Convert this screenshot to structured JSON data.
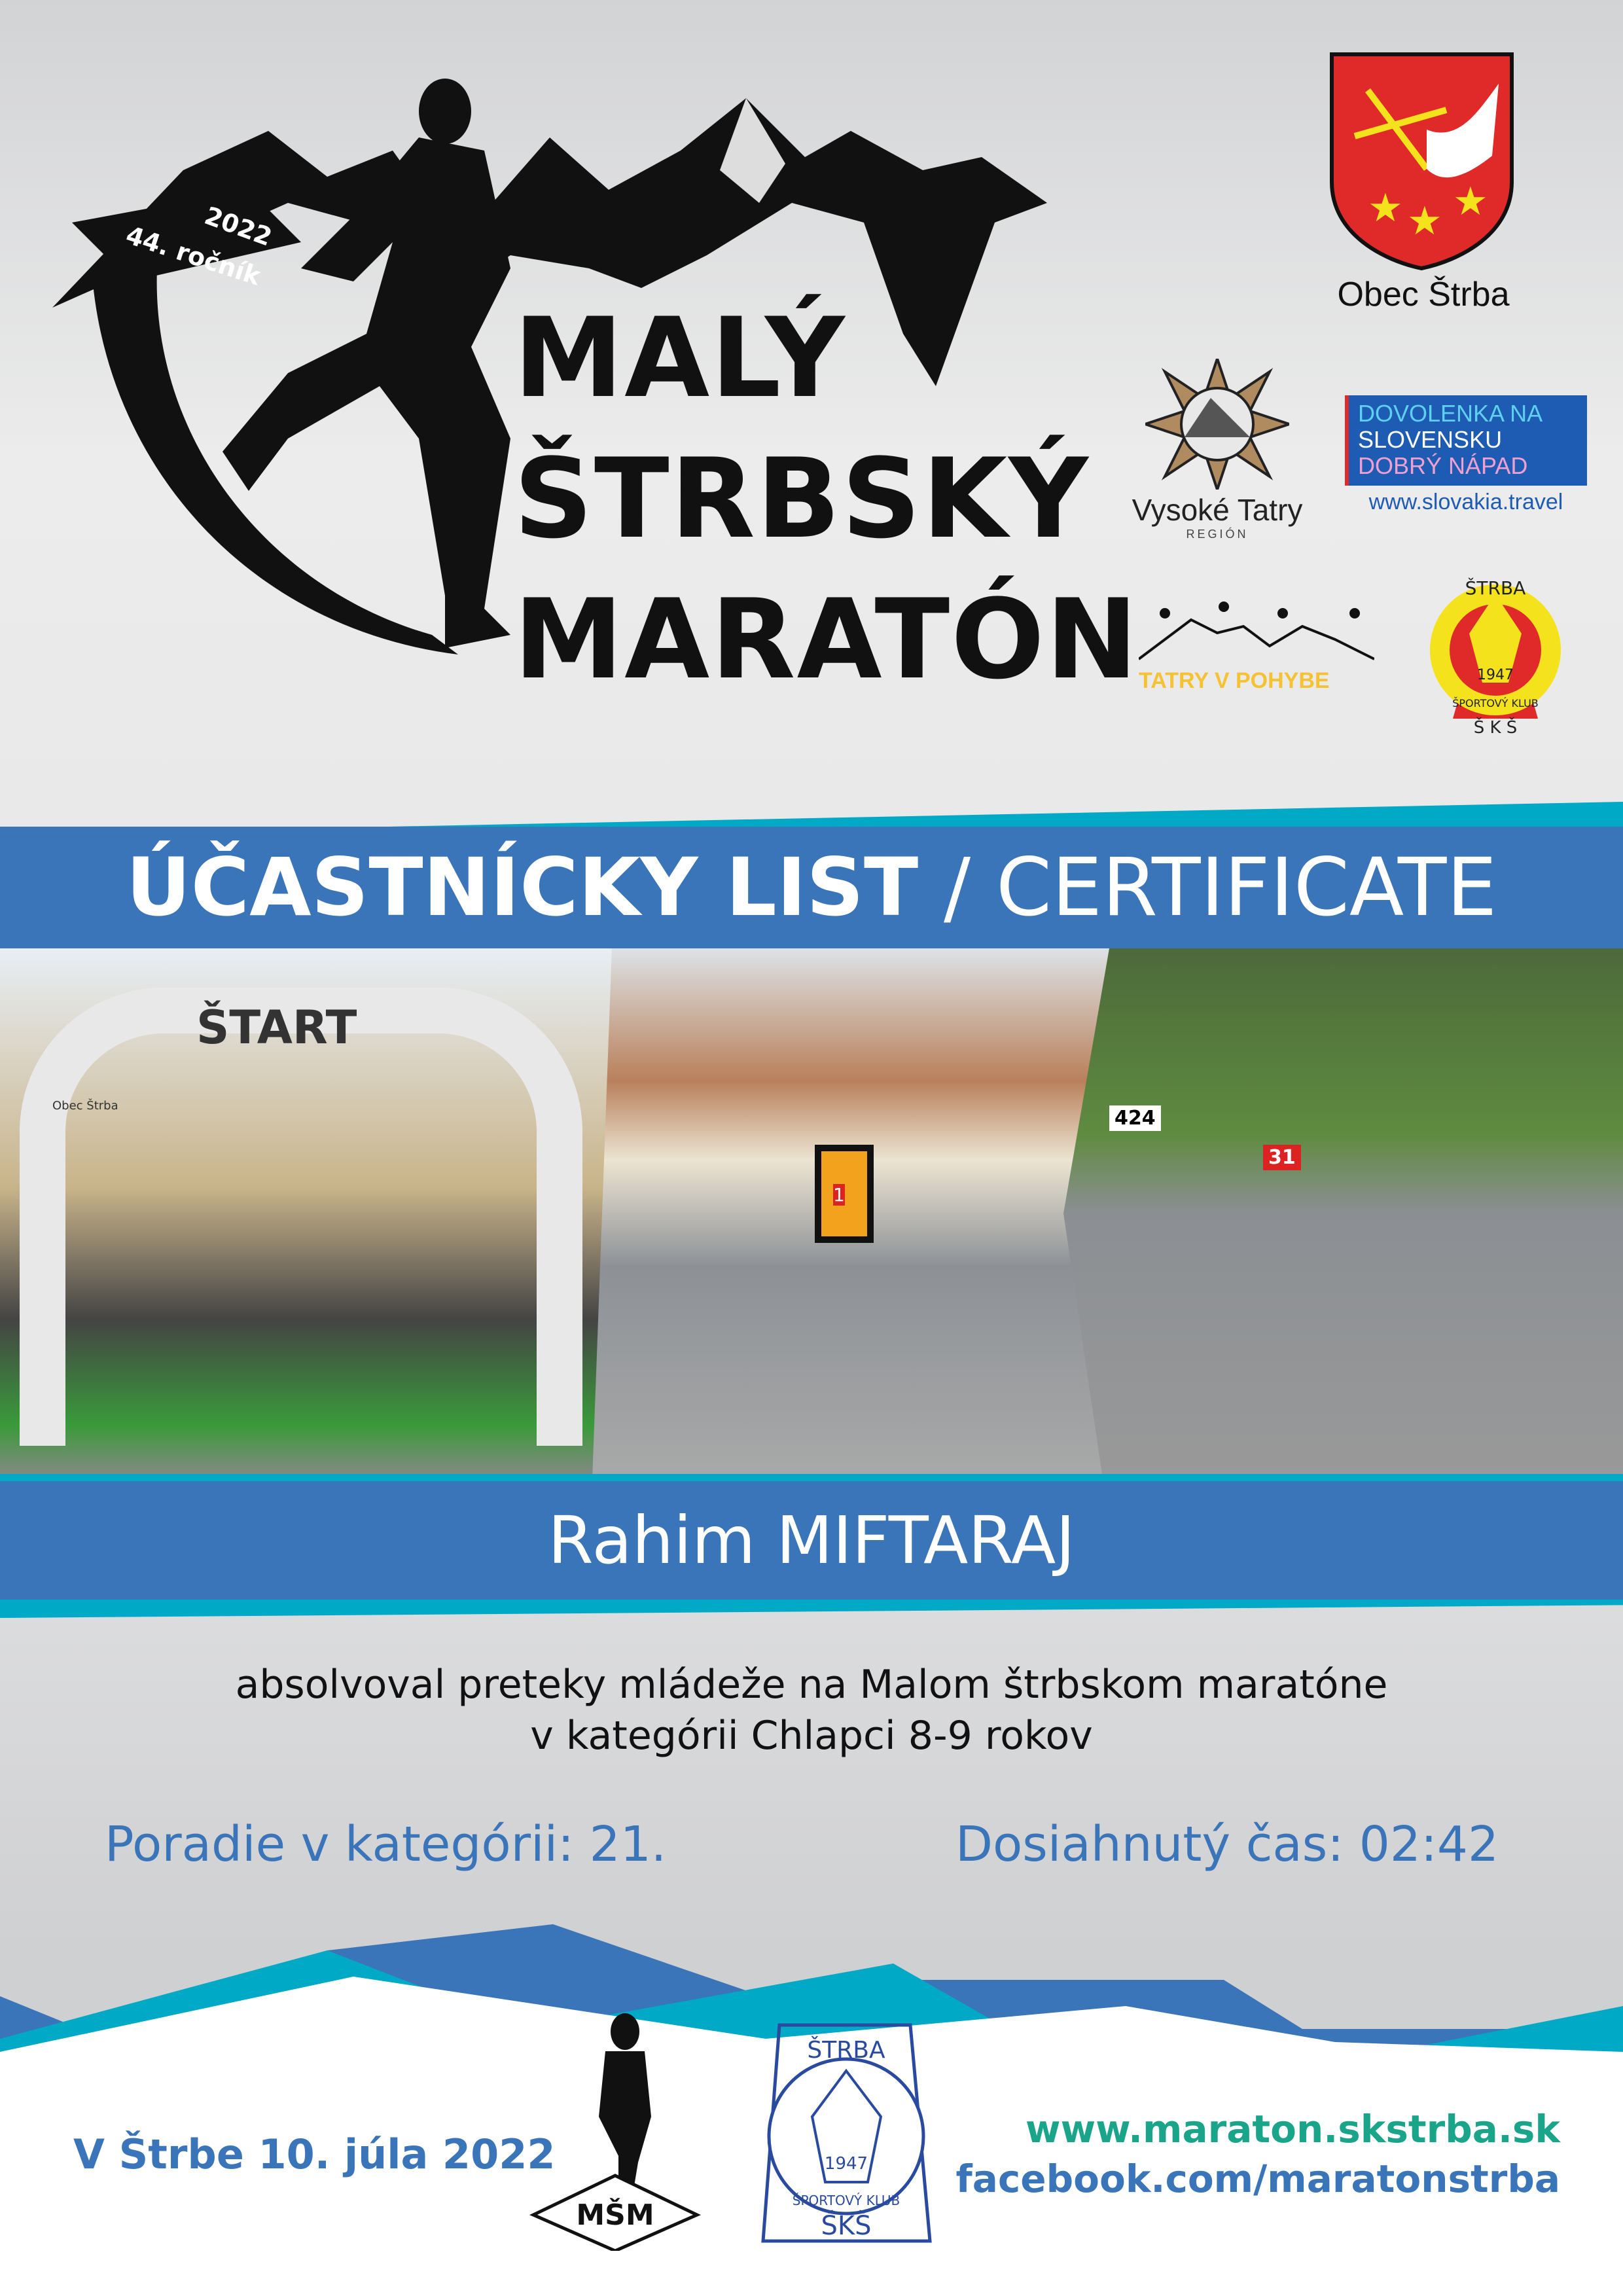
{
  "header": {
    "edition": "44. ročník",
    "year": "2022",
    "title_lines": [
      "MALÝ",
      "ŠTRBSKÝ",
      "MARATÓN"
    ]
  },
  "sponsors": {
    "municipality": "Obec Štrba",
    "vysoke_tatry": {
      "name": "Vysoké Tatry",
      "sub": "REGIÓN"
    },
    "slovakia": {
      "line1": "DOVOLENKA NA",
      "line2": "SLOVENSKU",
      "line3": "DOBRÝ NÁPAD",
      "url": "www.slovakia.travel"
    },
    "tatry_v_pohybe": "TATRY V POHYBE",
    "sks": {
      "top": "ŠTRBA",
      "year": "1947",
      "ring": "ŠPORTOVÝ KLUB",
      "bottom": "Š K Š"
    }
  },
  "certificate": {
    "title_bold": "ÚČASTNÍCKY LIST",
    "title_rest": " / CERTIFICATE",
    "photos": {
      "start_arch": "ŠTART",
      "arch_logo": "Obec Štrba",
      "bib1": "1",
      "bib2": "424",
      "bib3": "31"
    },
    "participant": "Rahim MIFTARAJ",
    "line1": "absolvoval preteky mládeže na Malom štrbskom maratóne",
    "line2": "v kategórii Chlapci 8-9 rokov",
    "rank_label": "Poradie v kategórii: 21.",
    "time_label": "Dosiahnutý čas: 02:42"
  },
  "footer": {
    "date": "V Štrbe 10. júla 2022",
    "msm_logo": "MŠM",
    "stamp": {
      "top": "ŠTRBA",
      "year": "1947",
      "ring": "ŠPORTOVÝ KLUB",
      "bottom": "ŠKŠ"
    },
    "website": "www.maraton.skstrba.sk",
    "facebook": "facebook.com/maratonstrba"
  },
  "colors": {
    "blue": "#3a74b9",
    "teal": "#00a9c5",
    "green": "#1aa58a",
    "red": "#e02a2a",
    "yellow": "#f4e21c"
  }
}
